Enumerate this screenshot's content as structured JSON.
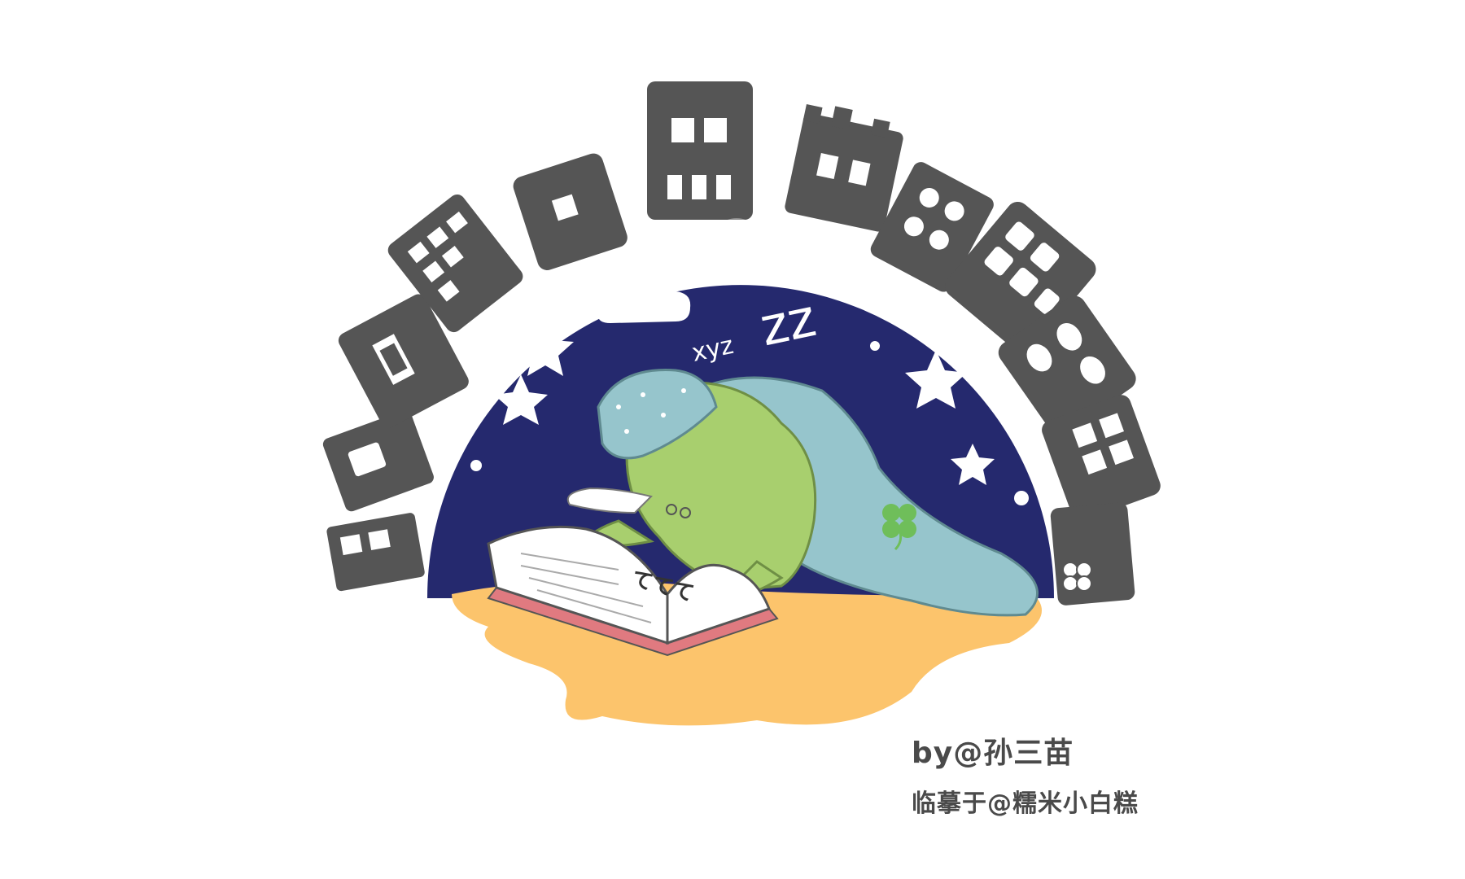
{
  "credits": {
    "author": "by@孙三苗",
    "copied_by": "临摹于@糯米小白糕"
  },
  "sleep_text": {
    "small": "xyz",
    "large": "zz"
  },
  "book_doodle": "ててて",
  "colors": {
    "buildings": "#555555",
    "night_sky": "#25296e",
    "moon": "#ffffff",
    "frog": "#a8cf6e",
    "blanket": "#96c5cc",
    "floor": "#fcc46c",
    "book_cover": "#e07a80",
    "clover": "#6fbe5a"
  },
  "icons": [
    "moon-icon",
    "star-icon",
    "cloud-icon",
    "clover-icon",
    "frog-illustration",
    "book-illustration"
  ]
}
